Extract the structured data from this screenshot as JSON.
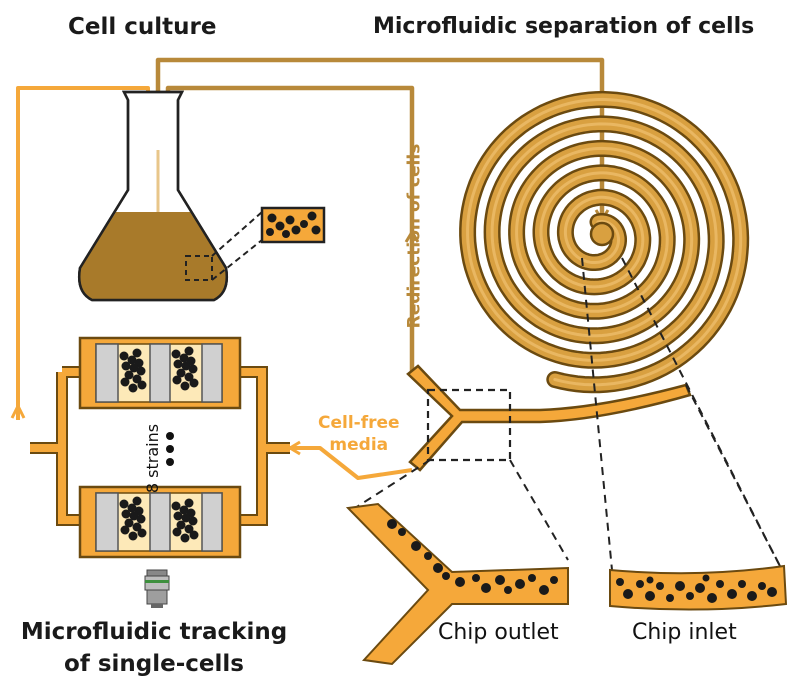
{
  "labels": {
    "cell_culture": "Cell culture",
    "microfluidic_separation": "Microfluidic separation of cells",
    "redirection": "Redirection of cells",
    "cell_free_line1": "Cell-free",
    "cell_free_line2": "media",
    "strains": "8 strains",
    "tracking_line1": "Microfluidic tracking",
    "tracking_line2": "of single-cells",
    "chip_outlet": "Chip outlet",
    "chip_inlet": "Chip inlet"
  },
  "colors": {
    "light_orange": "#f5a83a",
    "dark_tube": "#b8893a",
    "culture_brown": "#a87a2a",
    "cell": "#1a1a1a",
    "chamber_grey": "#d0d0d0",
    "chamber_bg": "#fde9b8"
  },
  "icons": [
    "microscope-objective-icon"
  ]
}
